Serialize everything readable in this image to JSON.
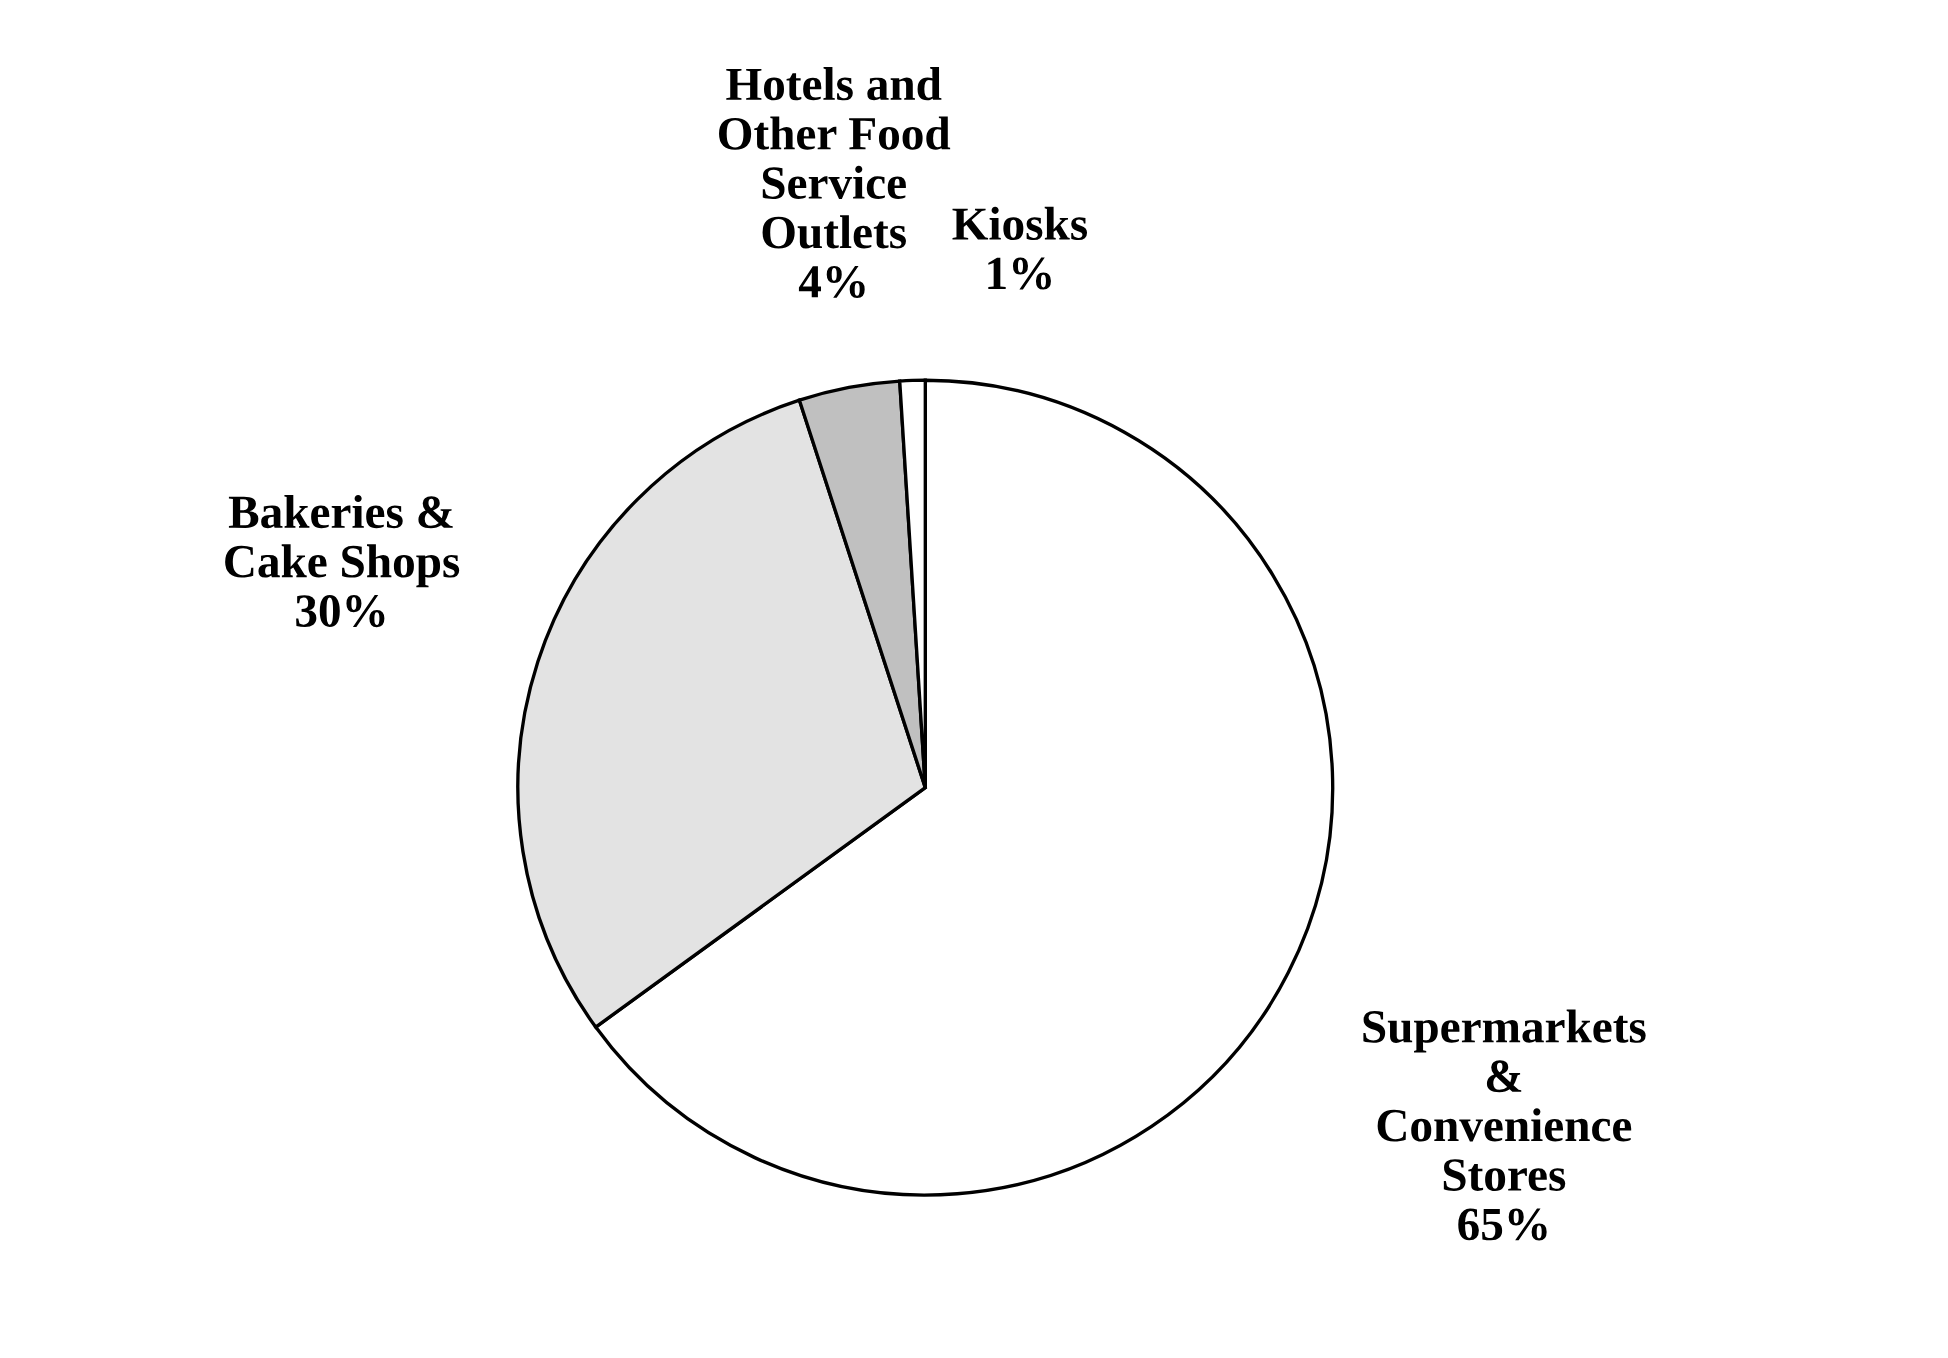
{
  "chart_data": {
    "type": "pie",
    "categories": [
      "Supermarkets\n&\nConvenience\nStores",
      "Bakeries &\nCake Shops",
      "Hotels and\nOther Food\nService\nOutlets",
      "Kiosks"
    ],
    "values": [
      65,
      30,
      4,
      1
    ],
    "value_labels": [
      "65%",
      "30%",
      "4%",
      "1%"
    ],
    "colors": [
      "#ffffff",
      "#e3e3e3",
      "#c0c0c0",
      "#ffffff"
    ]
  }
}
